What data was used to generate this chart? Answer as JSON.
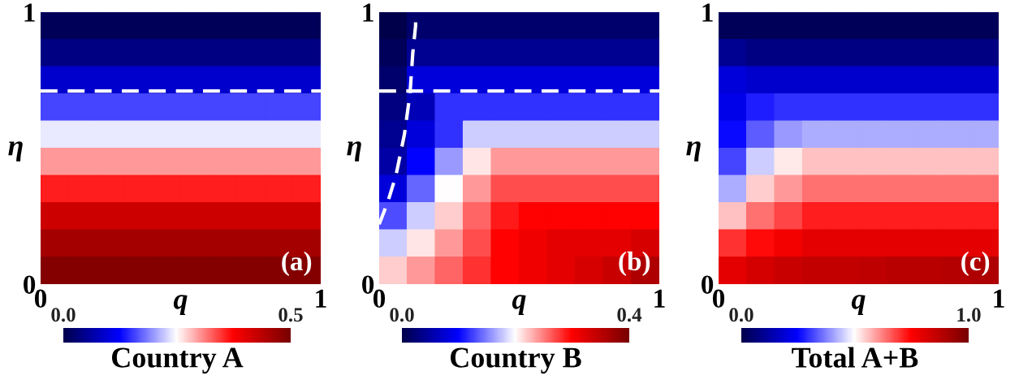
{
  "chart_data": [
    {
      "type": "heatmap",
      "xlabel": "q",
      "ylabel": "η",
      "clabel": "Country A",
      "annotations": [
        "(a)"
      ],
      "x": [
        0.05,
        0.15,
        0.25,
        0.35,
        0.45,
        0.55,
        0.65,
        0.75,
        0.85,
        0.95
      ],
      "y": [
        0.95,
        0.85,
        0.75,
        0.65,
        0.55,
        0.45,
        0.35,
        0.25,
        0.15,
        0.05
      ],
      "xlim": [
        0,
        1
      ],
      "ylim": [
        0,
        1
      ],
      "xticks": [
        0,
        1
      ],
      "yticks": [
        0,
        1
      ],
      "clim": [
        0,
        0.5
      ],
      "cticks": [
        {
          "value": 0,
          "label": "0.0"
        },
        {
          "value": 0.5,
          "label": "0.5"
        }
      ],
      "ref_lines": [
        {
          "axis": "y",
          "value": 0.71,
          "color": "#ffffff",
          "line_style": "dashed"
        }
      ],
      "cells": [
        [
          0.01,
          0.01,
          0.01,
          0.01,
          0.01,
          0.01,
          0.01,
          0.01,
          0.01,
          0.01
        ],
        [
          0.04,
          0.04,
          0.04,
          0.04,
          0.04,
          0.04,
          0.04,
          0.04,
          0.04,
          0.04
        ],
        [
          0.09,
          0.09,
          0.09,
          0.09,
          0.09,
          0.09,
          0.09,
          0.09,
          0.09,
          0.09
        ],
        [
          0.16,
          0.16,
          0.16,
          0.16,
          0.16,
          0.16,
          0.16,
          0.16,
          0.16,
          0.16
        ],
        [
          0.24,
          0.24,
          0.24,
          0.24,
          0.24,
          0.24,
          0.24,
          0.24,
          0.24,
          0.24
        ],
        [
          0.3,
          0.3,
          0.3,
          0.3,
          0.3,
          0.3,
          0.3,
          0.3,
          0.3,
          0.3
        ],
        [
          0.36,
          0.36,
          0.36,
          0.36,
          0.36,
          0.36,
          0.36,
          0.36,
          0.36,
          0.36
        ],
        [
          0.42,
          0.42,
          0.42,
          0.42,
          0.42,
          0.42,
          0.42,
          0.42,
          0.42,
          0.42
        ],
        [
          0.46,
          0.46,
          0.46,
          0.46,
          0.46,
          0.46,
          0.46,
          0.46,
          0.46,
          0.46
        ],
        [
          0.49,
          0.49,
          0.49,
          0.49,
          0.49,
          0.49,
          0.49,
          0.49,
          0.49,
          0.49
        ]
      ]
    },
    {
      "type": "heatmap",
      "xlabel": "q",
      "ylabel": "η",
      "clabel": "Country B",
      "annotations": [
        "(b)"
      ],
      "x": [
        0.05,
        0.15,
        0.25,
        0.35,
        0.45,
        0.55,
        0.65,
        0.75,
        0.85,
        0.95
      ],
      "y": [
        0.95,
        0.85,
        0.75,
        0.65,
        0.55,
        0.45,
        0.35,
        0.25,
        0.15,
        0.05
      ],
      "xlim": [
        0,
        1
      ],
      "ylim": [
        0,
        1
      ],
      "xticks": [
        0,
        1
      ],
      "yticks": [
        0,
        1
      ],
      "clim": [
        0,
        0.4
      ],
      "cticks": [
        {
          "value": 0,
          "label": "0.0"
        },
        {
          "value": 0.4,
          "label": "0.4"
        }
      ],
      "ref_lines": [
        {
          "axis": "y",
          "value": 0.71,
          "color": "#ffffff",
          "line_style": "dashed"
        }
      ],
      "series": [
        {
          "type": "line",
          "color": "#ffffff",
          "line_style": "dashed",
          "x": [
            0,
            0.03,
            0.06,
            0.09,
            0.11,
            0.12,
            0.13,
            0.13
          ],
          "values": [
            0.22,
            0.3,
            0.4,
            0.55,
            0.7,
            0.85,
            0.95,
            1.0
          ]
        }
      ],
      "cells": [
        [
          0.0,
          0.02,
          0.02,
          0.02,
          0.02,
          0.02,
          0.02,
          0.02,
          0.02,
          0.02
        ],
        [
          0.01,
          0.04,
          0.04,
          0.04,
          0.04,
          0.04,
          0.04,
          0.04,
          0.04,
          0.04
        ],
        [
          0.02,
          0.08,
          0.08,
          0.08,
          0.08,
          0.08,
          0.08,
          0.08,
          0.08,
          0.08
        ],
        [
          0.03,
          0.06,
          0.12,
          0.12,
          0.12,
          0.12,
          0.12,
          0.12,
          0.12,
          0.12
        ],
        [
          0.04,
          0.08,
          0.12,
          0.18,
          0.18,
          0.18,
          0.18,
          0.18,
          0.18,
          0.18
        ],
        [
          0.05,
          0.1,
          0.16,
          0.21,
          0.24,
          0.24,
          0.24,
          0.24,
          0.24,
          0.24
        ],
        [
          0.08,
          0.14,
          0.2,
          0.24,
          0.27,
          0.27,
          0.27,
          0.27,
          0.27,
          0.27
        ],
        [
          0.13,
          0.18,
          0.22,
          0.26,
          0.29,
          0.3,
          0.3,
          0.3,
          0.3,
          0.3
        ],
        [
          0.18,
          0.21,
          0.24,
          0.27,
          0.3,
          0.31,
          0.32,
          0.32,
          0.32,
          0.33
        ],
        [
          0.22,
          0.24,
          0.26,
          0.28,
          0.3,
          0.31,
          0.32,
          0.33,
          0.34,
          0.36
        ]
      ]
    },
    {
      "type": "heatmap",
      "xlabel": "q",
      "ylabel": "η",
      "clabel": "Total A+B",
      "annotations": [
        "(c)"
      ],
      "x": [
        0.05,
        0.15,
        0.25,
        0.35,
        0.45,
        0.55,
        0.65,
        0.75,
        0.85,
        0.95
      ],
      "y": [
        0.95,
        0.85,
        0.75,
        0.65,
        0.55,
        0.45,
        0.35,
        0.25,
        0.15,
        0.05
      ],
      "xlim": [
        0,
        1
      ],
      "ylim": [
        0,
        1
      ],
      "xticks": [
        0,
        1
      ],
      "yticks": [
        0,
        1
      ],
      "clim": [
        0,
        1.0
      ],
      "cticks": [
        {
          "value": 0,
          "label": "0.0"
        },
        {
          "value": 1.0,
          "label": "1.0"
        }
      ],
      "cells": [
        [
          0.02,
          0.02,
          0.02,
          0.02,
          0.02,
          0.02,
          0.02,
          0.02,
          0.02,
          0.02
        ],
        [
          0.1,
          0.08,
          0.08,
          0.08,
          0.08,
          0.08,
          0.08,
          0.08,
          0.08,
          0.08
        ],
        [
          0.2,
          0.18,
          0.18,
          0.18,
          0.18,
          0.18,
          0.18,
          0.18,
          0.18,
          0.18
        ],
        [
          0.22,
          0.28,
          0.3,
          0.3,
          0.3,
          0.3,
          0.3,
          0.3,
          0.3,
          0.3
        ],
        [
          0.26,
          0.34,
          0.4,
          0.42,
          0.42,
          0.42,
          0.42,
          0.42,
          0.42,
          0.42
        ],
        [
          0.32,
          0.45,
          0.52,
          0.56,
          0.56,
          0.56,
          0.56,
          0.56,
          0.56,
          0.56
        ],
        [
          0.42,
          0.55,
          0.6,
          0.64,
          0.64,
          0.64,
          0.64,
          0.64,
          0.64,
          0.64
        ],
        [
          0.56,
          0.64,
          0.68,
          0.72,
          0.72,
          0.72,
          0.72,
          0.72,
          0.72,
          0.72
        ],
        [
          0.7,
          0.74,
          0.77,
          0.8,
          0.8,
          0.8,
          0.8,
          0.8,
          0.8,
          0.8
        ],
        [
          0.8,
          0.83,
          0.85,
          0.86,
          0.86,
          0.87,
          0.88,
          0.88,
          0.89,
          0.9
        ]
      ]
    }
  ]
}
